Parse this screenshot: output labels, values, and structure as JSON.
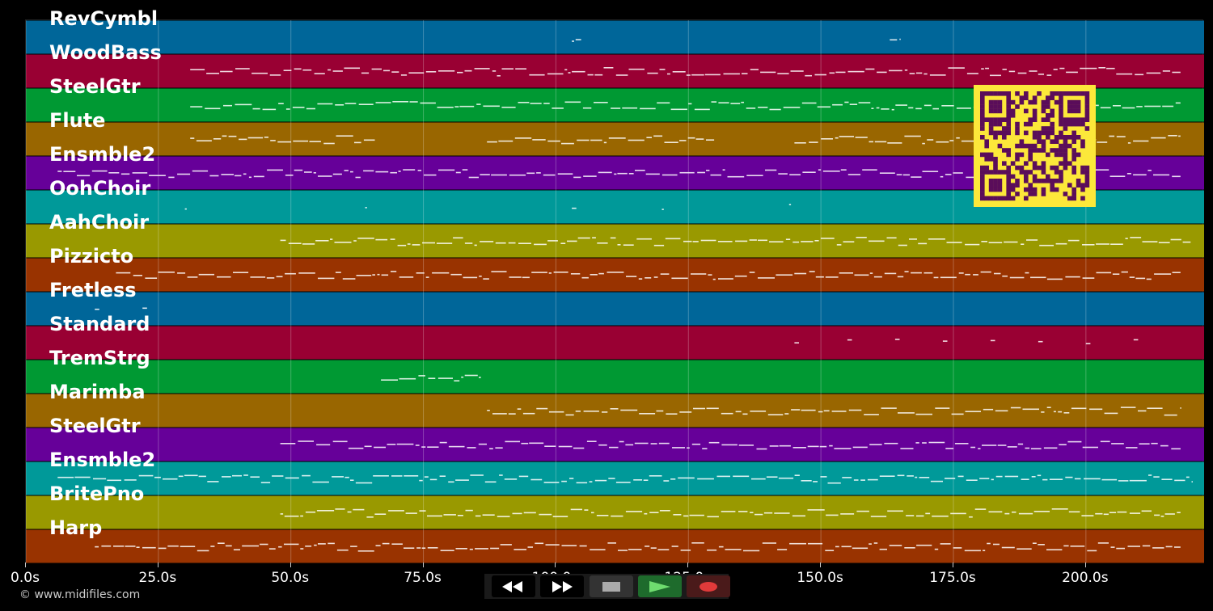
{
  "tracks": [
    {
      "name": "RevCymbl",
      "color": "#006699"
    },
    {
      "name": "WoodBass",
      "color": "#990033"
    },
    {
      "name": "SteelGtr",
      "color": "#009933"
    },
    {
      "name": "Flute",
      "color": "#996600"
    },
    {
      "name": "Ensmble2",
      "color": "#660099"
    },
    {
      "name": "OohChoir",
      "color": "#009999"
    },
    {
      "name": "AahChoir",
      "color": "#999900"
    },
    {
      "name": "Pizzicto",
      "color": "#993300"
    },
    {
      "name": "Fretless",
      "color": "#006699"
    },
    {
      "name": "Standard",
      "color": "#990033"
    },
    {
      "name": "TremStrg",
      "color": "#009933"
    },
    {
      "name": "Marimba",
      "color": "#996600"
    },
    {
      "name": "SteelGtr",
      "color": "#660099"
    },
    {
      "name": "Ensmble2",
      "color": "#009999"
    },
    {
      "name": "BritePno",
      "color": "#999900"
    },
    {
      "name": "Harp",
      "color": "#993300"
    }
  ],
  "time_axis": {
    "ticks": [
      "0.0s",
      "25.0s",
      "50.0s",
      "75.0s",
      "100.0s",
      "125.0s",
      "150.0s",
      "175.0s",
      "200.0s"
    ],
    "tick_values": [
      0,
      25,
      50,
      75,
      100,
      125,
      150,
      175,
      200
    ],
    "max_seconds": 222.3
  },
  "copyright": "© www.midifiles.com",
  "transport": {
    "rewind_icon": "rewind-icon",
    "fast_forward_icon": "fast-forward-icon",
    "stop_icon": "stop-icon",
    "play_icon": "play-icon",
    "record_icon": "record-icon"
  },
  "colors": {
    "background": "#000000",
    "note": "#ffffff",
    "qr_background": "#fce83a",
    "qr_modules": "#5a0d5a"
  }
}
